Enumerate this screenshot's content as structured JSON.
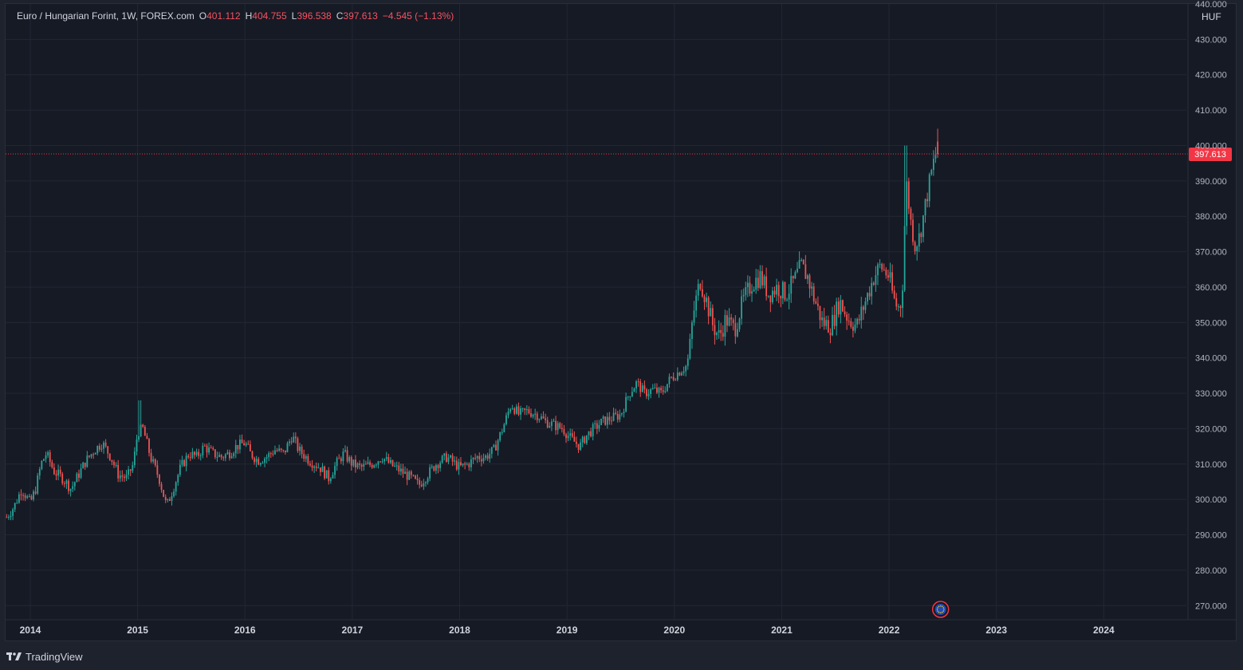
{
  "legend": {
    "symbol": "Euro / Hungarian Forint, 1W, FOREX.com",
    "o_label": "O",
    "o_value": "401.112",
    "h_label": "H",
    "h_value": "404.755",
    "l_label": "L",
    "l_value": "396.538",
    "c_label": "C",
    "c_value": "397.613",
    "change": "−4.545 (−1.13%)"
  },
  "currency": "HUF",
  "price_tag": "397.613",
  "branding": "TradingView",
  "colors": {
    "up": "#26a69a",
    "down": "#ef5350",
    "background": "#161a25",
    "grid": "#232734",
    "axis_text": "#b2b5be",
    "price_tag": "#f23645"
  },
  "chart_data": {
    "type": "candlestick",
    "interval": "1W",
    "ylim": [
      266,
      440
    ],
    "y_ticks": [
      270,
      280,
      290,
      300,
      310,
      320,
      330,
      340,
      350,
      360,
      370,
      380,
      390,
      400,
      410,
      420,
      430,
      440
    ],
    "y_tick_labels": [
      "270.000",
      "280.000",
      "290.000",
      "300.000",
      "310.000",
      "320.000",
      "330.000",
      "340.000",
      "350.000",
      "360.000",
      "370.000",
      "380.000",
      "390.000",
      "400.000",
      "410.000",
      "420.000",
      "430.000",
      "440.000"
    ],
    "x_ticks": [
      "2014",
      "2015",
      "2016",
      "2017",
      "2018",
      "2019",
      "2020",
      "2021",
      "2022",
      "2023",
      "2024"
    ],
    "x_tick_years": [
      2014,
      2015,
      2016,
      2017,
      2018,
      2019,
      2020,
      2021,
      2022,
      2023,
      2024
    ],
    "xlim": [
      2013.77,
      2024.77
    ],
    "last_price": 397.613,
    "event_marker_date": 2022.48,
    "close_path": [
      [
        2013.78,
        295
      ],
      [
        2013.85,
        298
      ],
      [
        2013.92,
        303
      ],
      [
        2014.0,
        299
      ],
      [
        2014.05,
        303
      ],
      [
        2014.1,
        310
      ],
      [
        2014.15,
        313
      ],
      [
        2014.22,
        308
      ],
      [
        2014.3,
        306
      ],
      [
        2014.38,
        303
      ],
      [
        2014.45,
        307
      ],
      [
        2014.52,
        311
      ],
      [
        2014.6,
        314
      ],
      [
        2014.67,
        316
      ],
      [
        2014.75,
        312
      ],
      [
        2014.82,
        307
      ],
      [
        2014.9,
        306
      ],
      [
        2014.96,
        310
      ],
      [
        2015.0,
        319
      ],
      [
        2015.05,
        320
      ],
      [
        2015.12,
        312
      ],
      [
        2015.2,
        306
      ],
      [
        2015.27,
        298
      ],
      [
        2015.33,
        303
      ],
      [
        2015.4,
        309
      ],
      [
        2015.48,
        313
      ],
      [
        2015.55,
        312
      ],
      [
        2015.62,
        315
      ],
      [
        2015.7,
        313
      ],
      [
        2015.78,
        312
      ],
      [
        2015.85,
        313
      ],
      [
        2015.92,
        315
      ],
      [
        2016.0,
        316
      ],
      [
        2016.05,
        313
      ],
      [
        2016.12,
        311
      ],
      [
        2016.2,
        312
      ],
      [
        2016.28,
        314
      ],
      [
        2016.36,
        313
      ],
      [
        2016.44,
        318
      ],
      [
        2016.5,
        314
      ],
      [
        2016.6,
        311
      ],
      [
        2016.7,
        309
      ],
      [
        2016.78,
        306
      ],
      [
        2016.85,
        310
      ],
      [
        2016.92,
        313
      ],
      [
        2017.0,
        310
      ],
      [
        2017.08,
        309
      ],
      [
        2017.18,
        310
      ],
      [
        2017.28,
        312
      ],
      [
        2017.35,
        310
      ],
      [
        2017.45,
        308
      ],
      [
        2017.55,
        306
      ],
      [
        2017.62,
        304
      ],
      [
        2017.7,
        307
      ],
      [
        2017.78,
        310
      ],
      [
        2017.88,
        312
      ],
      [
        2018.0,
        309
      ],
      [
        2018.08,
        310
      ],
      [
        2018.16,
        312
      ],
      [
        2018.24,
        312
      ],
      [
        2018.32,
        314
      ],
      [
        2018.4,
        320
      ],
      [
        2018.48,
        327
      ],
      [
        2018.55,
        324
      ],
      [
        2018.63,
        325
      ],
      [
        2018.72,
        324
      ],
      [
        2018.8,
        322
      ],
      [
        2018.88,
        321
      ],
      [
        2018.96,
        320
      ],
      [
        2019.04,
        317
      ],
      [
        2019.12,
        315
      ],
      [
        2019.18,
        318
      ],
      [
        2019.25,
        320
      ],
      [
        2019.33,
        322
      ],
      [
        2019.42,
        323
      ],
      [
        2019.5,
        324
      ],
      [
        2019.58,
        330
      ],
      [
        2019.65,
        333
      ],
      [
        2019.72,
        330
      ],
      [
        2019.8,
        331
      ],
      [
        2019.88,
        330
      ],
      [
        2019.96,
        334
      ],
      [
        2020.04,
        336
      ],
      [
        2020.12,
        338
      ],
      [
        2020.18,
        353
      ],
      [
        2020.24,
        362
      ],
      [
        2020.3,
        356
      ],
      [
        2020.36,
        349
      ],
      [
        2020.42,
        346
      ],
      [
        2020.48,
        351
      ],
      [
        2020.56,
        348
      ],
      [
        2020.64,
        356
      ],
      [
        2020.72,
        361
      ],
      [
        2020.8,
        363
      ],
      [
        2020.88,
        358
      ],
      [
        2020.96,
        360
      ],
      [
        2021.04,
        358
      ],
      [
        2021.12,
        362
      ],
      [
        2021.18,
        366
      ],
      [
        2021.24,
        363
      ],
      [
        2021.3,
        357
      ],
      [
        2021.38,
        350
      ],
      [
        2021.46,
        349
      ],
      [
        2021.54,
        356
      ],
      [
        2021.62,
        351
      ],
      [
        2021.7,
        349
      ],
      [
        2021.78,
        356
      ],
      [
        2021.86,
        363
      ],
      [
        2021.92,
        366
      ],
      [
        2022.0,
        363
      ],
      [
        2022.04,
        357
      ],
      [
        2022.08,
        354
      ],
      [
        2022.12,
        356
      ],
      [
        2022.16,
        390
      ],
      [
        2022.2,
        379
      ],
      [
        2022.24,
        372
      ],
      [
        2022.28,
        374
      ],
      [
        2022.32,
        380
      ],
      [
        2022.36,
        387
      ],
      [
        2022.42,
        396
      ],
      [
        2022.45,
        399
      ],
      [
        2022.47,
        397.613
      ]
    ]
  }
}
